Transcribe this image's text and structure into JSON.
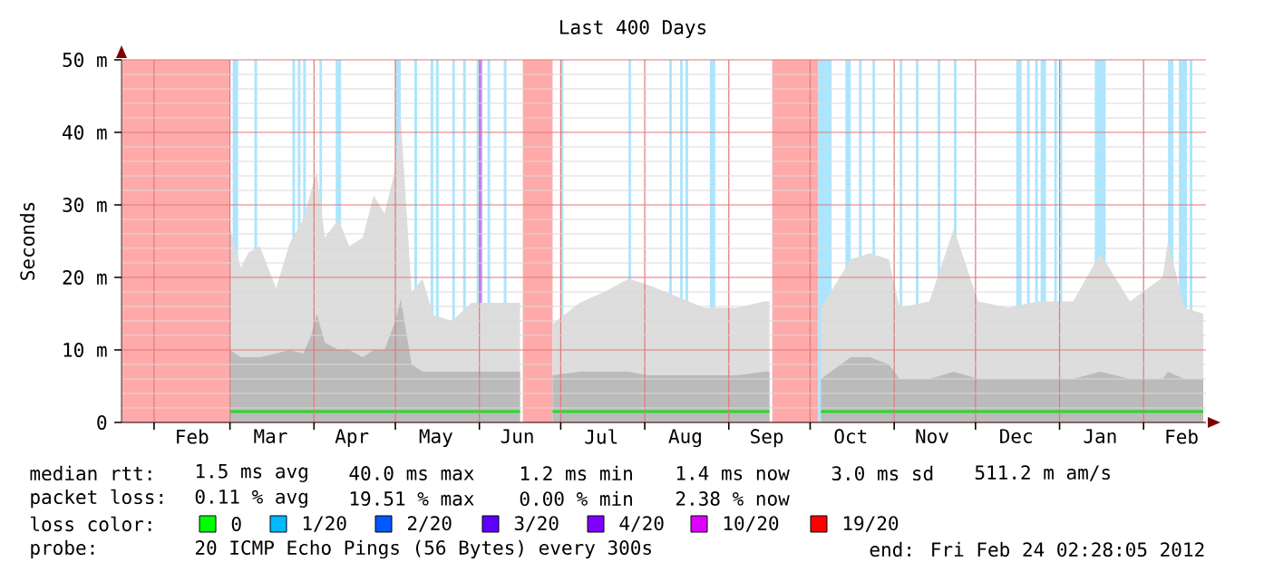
{
  "chart_data": {
    "type": "area",
    "title": "Last 400 Days",
    "ylabel": "Seconds",
    "x": [
      "2011-03-01",
      "2011-03-05",
      "2011-03-08",
      "2011-03-12",
      "2011-03-18",
      "2011-03-23",
      "2011-03-28",
      "2011-03-31",
      "2011-04-02",
      "2011-04-05",
      "2011-04-10",
      "2011-04-14",
      "2011-04-19",
      "2011-04-23",
      "2011-04-27",
      "2011-05-01",
      "2011-05-03",
      "2011-05-07",
      "2011-05-11",
      "2011-05-15",
      "2011-05-22",
      "2011-05-29",
      "2011-06-03",
      "2011-06-09",
      "2011-06-16",
      "2011-06-22",
      "2011-06-28",
      "2011-07-08",
      "2011-07-17",
      "2011-07-26",
      "2011-08-02",
      "2011-08-12",
      "2011-08-23",
      "2011-09-04",
      "2011-09-14",
      "2011-09-16",
      "2011-09-25",
      "2011-10-05",
      "2011-10-16",
      "2011-10-23",
      "2011-10-30",
      "2011-11-03",
      "2011-11-14",
      "2011-11-23",
      "2011-12-02",
      "2011-12-13",
      "2011-12-24",
      "2012-01-06",
      "2012-01-16",
      "2012-01-27",
      "2012-02-08",
      "2012-02-10",
      "2012-02-16",
      "2012-02-23"
    ],
    "series": [
      {
        "color": "#dddddd",
        "values": [
          26.8,
          21.4,
          23.5,
          24.3,
          18.5,
          24.7,
          28,
          32,
          34.6,
          25.5,
          28,
          24.3,
          25.5,
          31.3,
          28.8,
          35,
          42,
          18,
          19.8,
          14.8,
          14,
          16.5,
          16.5,
          16.5,
          16.5,
          null,
          13.6,
          16.5,
          18,
          19.8,
          19,
          17.5,
          15.8,
          15.8,
          16.7,
          16.7,
          null,
          15.8,
          22.5,
          23.3,
          22.5,
          15.8,
          16.7,
          26.7,
          16.7,
          15.8,
          16.7,
          16.7,
          23.3,
          16.7,
          20,
          25,
          15.8,
          15
        ]
      },
      {
        "color": "#bbbbbb",
        "values": [
          10,
          9,
          9,
          9,
          9.5,
          10,
          9.5,
          12,
          15,
          11,
          10,
          10,
          9,
          10,
          10,
          14,
          17,
          8,
          7,
          7,
          7,
          7,
          7,
          7,
          7,
          null,
          6.5,
          7,
          7,
          7,
          6.5,
          6.5,
          6.5,
          6.5,
          7,
          7,
          null,
          6,
          9,
          9,
          8,
          6,
          6,
          7,
          6,
          6,
          6,
          6,
          7,
          6,
          6,
          7,
          6,
          6
        ]
      },
      {
        "type": "line",
        "color": "#22dd22",
        "values": [
          1.5,
          1.5,
          1.5,
          1.5,
          1.5,
          1.5,
          1.5,
          1.5,
          1.5,
          1.5,
          1.5,
          1.5,
          1.5,
          1.5,
          1.5,
          1.5,
          1.5,
          1.5,
          1.5,
          1.5,
          1.5,
          1.5,
          1.5,
          1.5,
          1.5,
          null,
          1.5,
          1.5,
          1.5,
          1.5,
          1.5,
          1.5,
          1.5,
          1.5,
          1.5,
          1.5,
          null,
          1.5,
          1.5,
          1.5,
          1.5,
          1.5,
          1.5,
          1.5,
          1.5,
          1.5,
          1.5,
          1.5,
          1.5,
          1.5,
          1.5,
          1.5,
          1.5,
          1.5
        ]
      }
    ],
    "xlim": [
      "2011-01-20",
      "2012-02-24"
    ],
    "xticks": [
      {
        "value": "2011-02-01",
        "label": null
      },
      {
        "value": "2011-02-15",
        "label": "Feb"
      },
      {
        "value": "2011-03-01",
        "label": null
      },
      {
        "value": "2011-03-16",
        "label": "Mar"
      },
      {
        "value": "2011-04-01",
        "label": null
      },
      {
        "value": "2011-04-15",
        "label": "Apr"
      },
      {
        "value": "2011-05-01",
        "label": null
      },
      {
        "value": "2011-05-16",
        "label": "May"
      },
      {
        "value": "2011-06-01",
        "label": null
      },
      {
        "value": "2011-06-15",
        "label": "Jun"
      },
      {
        "value": "2011-07-01",
        "label": null
      },
      {
        "value": "2011-07-16",
        "label": "Jul"
      },
      {
        "value": "2011-08-01",
        "label": null
      },
      {
        "value": "2011-08-16",
        "label": "Aug"
      },
      {
        "value": "2011-09-01",
        "label": null
      },
      {
        "value": "2011-09-15",
        "label": "Sep"
      },
      {
        "value": "2011-10-01",
        "label": null
      },
      {
        "value": "2011-10-16",
        "label": "Oct"
      },
      {
        "value": "2011-11-01",
        "label": null
      },
      {
        "value": "2011-11-15",
        "label": "Nov"
      },
      {
        "value": "2011-12-01",
        "label": null
      },
      {
        "value": "2011-12-16",
        "label": "Dec"
      },
      {
        "value": "2012-01-01",
        "label": null
      },
      {
        "value": "2012-01-16",
        "label": "Jan"
      },
      {
        "value": "2012-02-01",
        "label": null
      },
      {
        "value": "2012-02-15",
        "label": "Feb"
      }
    ],
    "ylim": [
      0,
      50
    ],
    "yticks": [
      0,
      {
        "value": 10,
        "label": "10 m"
      },
      {
        "value": 20,
        "label": "20 m"
      },
      {
        "value": 30,
        "label": "30 m"
      },
      {
        "value": 40,
        "label": "40 m"
      },
      {
        "value": 50,
        "label": "50 m"
      }
    ],
    "grid": true,
    "bands": [
      {
        "axis": "x",
        "from": "2011-01-20",
        "to": "2011-03-01",
        "color": "#ffaaaa"
      },
      {
        "axis": "x",
        "from": "2011-06-17",
        "to": "2011-06-28",
        "color": "#ffaaaa"
      },
      {
        "axis": "x",
        "from": "2011-09-17",
        "to": "2011-10-04",
        "color": "#ffaaaa"
      },
      {
        "axis": "x",
        "from": "2011-03-02",
        "to": "2011-03-04",
        "color": "#aae6ff"
      },
      {
        "axis": "x",
        "from": "2011-03-10",
        "to": "2011-03-11",
        "color": "#aae6ff"
      },
      {
        "axis": "x",
        "from": "2011-03-24",
        "to": "2011-03-25",
        "color": "#aae6ff"
      },
      {
        "axis": "x",
        "from": "2011-03-26",
        "to": "2011-03-27",
        "color": "#aae6ff"
      },
      {
        "axis": "x",
        "from": "2011-03-28",
        "to": "2011-03-29",
        "color": "#aae6ff"
      },
      {
        "axis": "x",
        "from": "2011-04-03",
        "to": "2011-04-04",
        "color": "#aae6ff"
      },
      {
        "axis": "x",
        "from": "2011-04-09",
        "to": "2011-04-11",
        "color": "#aae6ff"
      },
      {
        "axis": "x",
        "from": "2011-05-01",
        "to": "2011-05-03",
        "color": "#aae6ff"
      },
      {
        "axis": "x",
        "from": "2011-05-08",
        "to": "2011-05-09",
        "color": "#aae6ff"
      },
      {
        "axis": "x",
        "from": "2011-05-14",
        "to": "2011-05-15",
        "color": "#aae6ff"
      },
      {
        "axis": "x",
        "from": "2011-05-16",
        "to": "2011-05-17",
        "color": "#aae6ff"
      },
      {
        "axis": "x",
        "from": "2011-05-22",
        "to": "2011-05-23",
        "color": "#aae6ff"
      },
      {
        "axis": "x",
        "from": "2011-05-26",
        "to": "2011-05-27",
        "color": "#aae6ff"
      },
      {
        "axis": "x",
        "from": "2011-05-31",
        "to": "2011-06-01",
        "color": "#aae6ff"
      },
      {
        "axis": "x",
        "from": "2011-06-01",
        "to": "2011-06-02",
        "color": "#bb88ff"
      },
      {
        "axis": "x",
        "from": "2011-06-04",
        "to": "2011-06-05",
        "color": "#aae6ff"
      },
      {
        "axis": "x",
        "from": "2011-06-10",
        "to": "2011-06-11",
        "color": "#aae6ff"
      },
      {
        "axis": "x",
        "from": "2011-07-01",
        "to": "2011-07-02",
        "color": "#aae6ff"
      },
      {
        "axis": "x",
        "from": "2011-07-26",
        "to": "2011-07-27",
        "color": "#aae6ff"
      },
      {
        "axis": "x",
        "from": "2011-08-10",
        "to": "2011-08-11",
        "color": "#aae6ff"
      },
      {
        "axis": "x",
        "from": "2011-08-14",
        "to": "2011-08-15",
        "color": "#aae6ff"
      },
      {
        "axis": "x",
        "from": "2011-08-16",
        "to": "2011-08-17",
        "color": "#aae6ff"
      },
      {
        "axis": "x",
        "from": "2011-08-25",
        "to": "2011-08-27",
        "color": "#aae6ff"
      },
      {
        "axis": "x",
        "from": "2011-10-04",
        "to": "2011-10-09",
        "color": "#aae6ff"
      },
      {
        "axis": "x",
        "from": "2011-10-14",
        "to": "2011-10-16",
        "color": "#aae6ff"
      },
      {
        "axis": "x",
        "from": "2011-10-19",
        "to": "2011-10-20",
        "color": "#aae6ff"
      },
      {
        "axis": "x",
        "from": "2011-10-24",
        "to": "2011-10-25",
        "color": "#aae6ff"
      },
      {
        "axis": "x",
        "from": "2011-11-03",
        "to": "2011-11-04",
        "color": "#aae6ff"
      },
      {
        "axis": "x",
        "from": "2011-11-09",
        "to": "2011-11-10",
        "color": "#aae6ff"
      },
      {
        "axis": "x",
        "from": "2011-11-17",
        "to": "2011-11-18",
        "color": "#aae6ff"
      },
      {
        "axis": "x",
        "from": "2011-11-23",
        "to": "2011-11-24",
        "color": "#aae6ff"
      },
      {
        "axis": "x",
        "from": "2011-12-16",
        "to": "2011-12-18",
        "color": "#aae6ff"
      },
      {
        "axis": "x",
        "from": "2011-12-20",
        "to": "2011-12-21",
        "color": "#aae6ff"
      },
      {
        "axis": "x",
        "from": "2011-12-23",
        "to": "2011-12-24",
        "color": "#aae6ff"
      },
      {
        "axis": "x",
        "from": "2011-12-25",
        "to": "2011-12-27",
        "color": "#aae6ff"
      },
      {
        "axis": "x",
        "from": "2011-12-30",
        "to": "2011-12-31",
        "color": "#aae6ff"
      },
      {
        "axis": "x",
        "from": "2012-01-01",
        "to": "2012-01-02",
        "color": "#aae6ff"
      },
      {
        "axis": "x",
        "from": "2012-01-14",
        "to": "2012-01-18",
        "color": "#aae6ff"
      },
      {
        "axis": "x",
        "from": "2012-02-10",
        "to": "2012-02-12",
        "color": "#aae6ff"
      },
      {
        "axis": "x",
        "from": "2012-02-14",
        "to": "2012-02-17",
        "color": "#aae6ff"
      },
      {
        "axis": "x",
        "from": "2012-02-18",
        "to": "2012-02-19",
        "color": "#aae6ff"
      }
    ],
    "annotations": [
      "median rtt:",
      "1.5 ms avg",
      "40.0 ms max",
      "1.2 ms min",
      "1.4 ms now",
      "3.0 ms sd",
      "511.2 m am/s",
      "packet loss:",
      "0.11 % avg",
      "19.51 % max",
      "0.00 % min",
      "2.38 % now",
      "loss color:",
      "0",
      "1/20",
      "2/20",
      "3/20",
      "4/20",
      "10/20",
      "19/20",
      "probe:",
      "20 ICMP Echo Pings (56 Bytes) every 300s",
      "end: Fri Feb 24 02:28:05 2012"
    ]
  }
}
